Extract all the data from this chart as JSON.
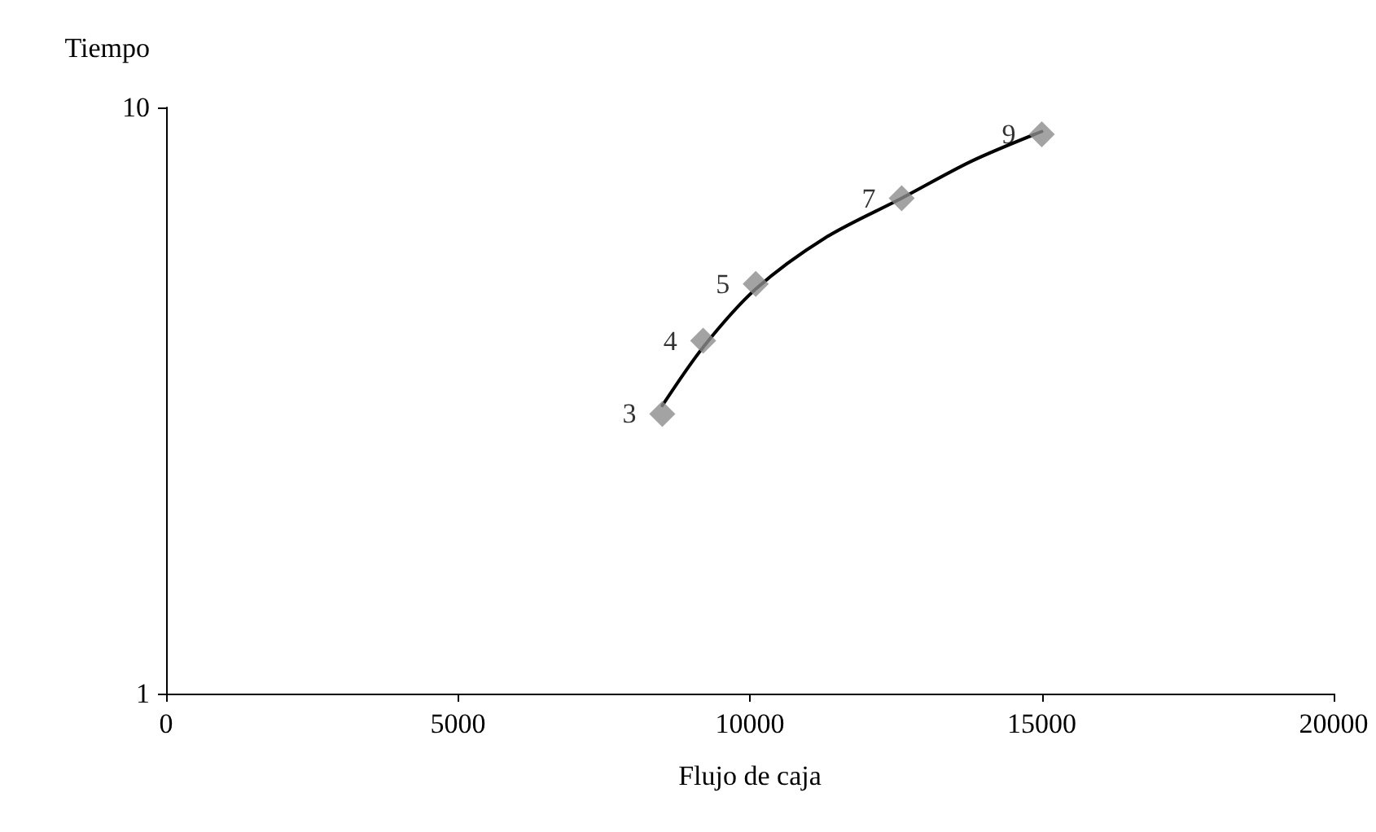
{
  "chart_data": {
    "type": "scatter",
    "xlabel": "Flujo de caja",
    "ylabel": "Tiempo",
    "xlim": [
      0,
      20000
    ],
    "xticks": [
      0,
      5000,
      10000,
      15000,
      20000
    ],
    "ylim": [
      1,
      10
    ],
    "yticks": [
      1,
      10
    ],
    "log": "y",
    "grid": false,
    "marker": "diamond",
    "x": [
      8500,
      9200,
      10100,
      12600,
      15000
    ],
    "series": [
      {
        "color": "#8c8c8c",
        "values": [
          3,
          4,
          5,
          7,
          9
        ],
        "value_labels": [
          "3",
          "4",
          "5",
          "7",
          "9"
        ]
      },
      {
        "type": "line",
        "color": "#000000",
        "marker": "none",
        "x": [
          8500,
          9200,
          10100,
          11300,
          12600,
          13800,
          15000
        ],
        "values": [
          3.1,
          3.9,
          4.9,
          6.0,
          7.0,
          8.1,
          9.1
        ]
      }
    ]
  }
}
